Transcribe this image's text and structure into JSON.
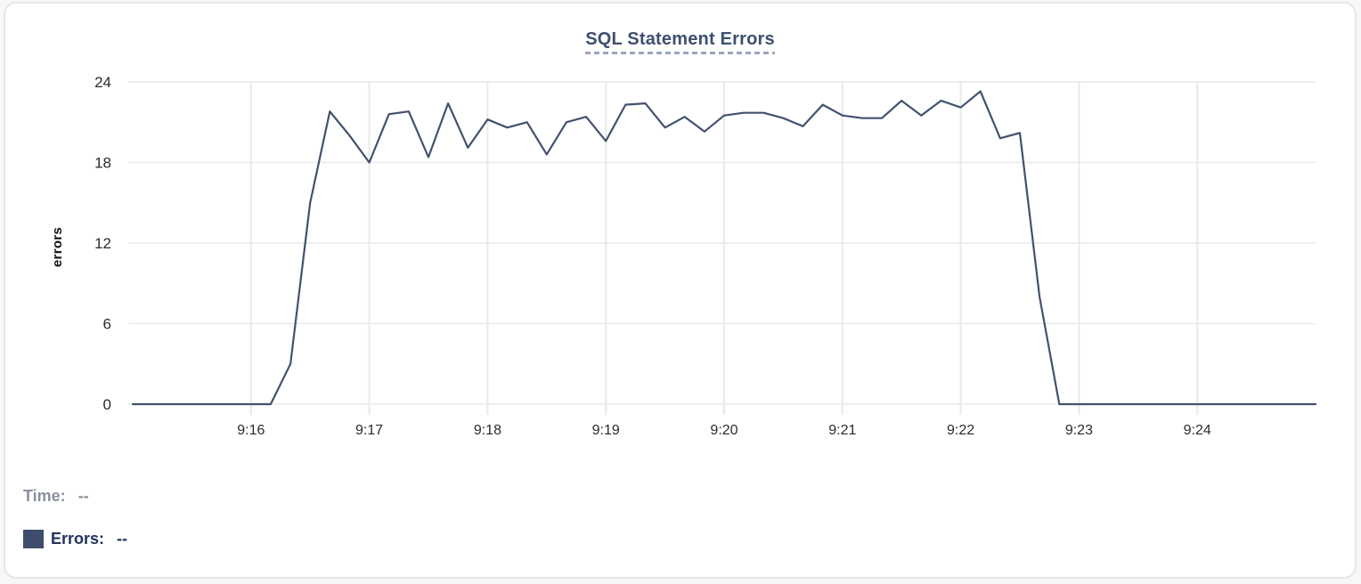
{
  "chart": {
    "title": "SQL Statement Errors",
    "ylabel": "errors"
  },
  "legend": {
    "time_label": "Time:",
    "time_value": "--",
    "errors_label": "Errors:",
    "errors_value": "--"
  },
  "colors": {
    "line": "#42526e",
    "swatch": "#3e4d6b",
    "title": "#3e4f70",
    "grid": "#e9e9e9",
    "tick_text": "#2b2b2b",
    "time_text": "#8b919b",
    "errors_text": "#22345c"
  },
  "chart_data": {
    "type": "line",
    "title": "SQL Statement Errors",
    "xlabel": "",
    "ylabel": "errors",
    "grid": true,
    "legend_position": "bottom-left",
    "x_axis": {
      "start": "9:15:00",
      "end": "9:25:00",
      "tick_labels": [
        "9:16",
        "9:17",
        "9:18",
        "9:19",
        "9:20",
        "9:21",
        "9:22",
        "9:23",
        "9:24"
      ],
      "tick_interval_seconds": 60
    },
    "y_axis": {
      "ticks": [
        0,
        6,
        12,
        18,
        24
      ],
      "range": [
        0,
        24
      ]
    },
    "series": [
      {
        "name": "Errors",
        "color": "#42526e",
        "start_time": "9:15:00",
        "interval_seconds": 10,
        "values": [
          0,
          0,
          0,
          0,
          0,
          0,
          0,
          0,
          3,
          15,
          21.8,
          20,
          18,
          21.6,
          21.8,
          18.4,
          22.4,
          19.1,
          21.2,
          20.6,
          21,
          18.6,
          21,
          21.4,
          19.6,
          22.3,
          22.4,
          20.6,
          21.4,
          20.3,
          21.5,
          21.7,
          21.7,
          21.3,
          20.7,
          22.3,
          21.5,
          21.3,
          21.3,
          22.6,
          21.5,
          22.6,
          22.1,
          23.3,
          19.8,
          20.2,
          8,
          0,
          0,
          0,
          0,
          0,
          0,
          0,
          0,
          0,
          0,
          0,
          0,
          0,
          0
        ]
      }
    ]
  }
}
